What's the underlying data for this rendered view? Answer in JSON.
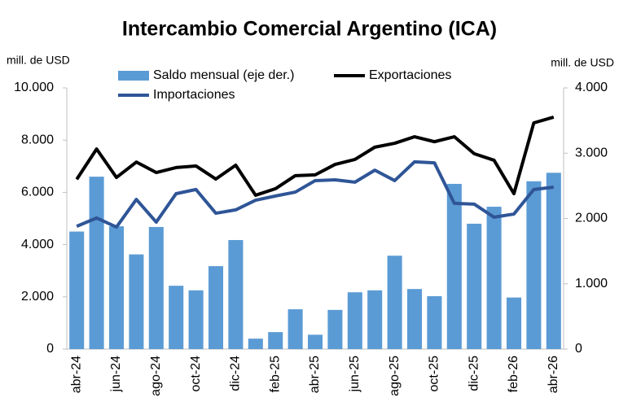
{
  "chart_data": {
    "type": "bar-line",
    "title": "Intercambio Comercial Argentino (ICA)",
    "y_label": "mill. de USD",
    "y2_label": "mill. de USD",
    "categories": [
      "abr-24",
      null,
      "jun-24",
      null,
      "ago-24",
      null,
      "oct-24",
      null,
      "dic-24",
      null,
      "feb-25",
      null,
      "abr-25",
      null,
      "jun-25",
      null,
      "ago-25",
      null,
      "oct-25",
      null,
      "dic-25",
      null,
      "feb-26",
      null,
      "abr-26"
    ],
    "ylim": [
      0,
      10000
    ],
    "yticks": [
      0,
      {
        "value": 2000,
        "label": "2.000"
      },
      {
        "value": 4000,
        "label": "4.000"
      },
      {
        "value": 6000,
        "label": "6.000"
      },
      {
        "value": 8000,
        "label": "8.000"
      },
      {
        "value": 10000,
        "label": "10.000"
      }
    ],
    "y2lim": [
      0,
      4000
    ],
    "y2ticks": [
      0,
      {
        "value": 1000,
        "label": "1.000"
      },
      {
        "value": 2000,
        "label": "2.000"
      },
      {
        "value": 3000,
        "label": "3.000"
      },
      {
        "value": 4000,
        "label": "4.000"
      }
    ],
    "series": [
      {
        "name": "Saldo mensual (eje der.)",
        "type": "bar",
        "axis": "y2",
        "color": "#5b9bd5",
        "values": [
          1800,
          2640,
          1880,
          1450,
          1870,
          970,
          900,
          1270,
          1670,
          160,
          260,
          610,
          220,
          600,
          870,
          900,
          1430,
          920,
          810,
          2530,
          1920,
          2180,
          790,
          2570,
          2700
        ]
      },
      {
        "name": "Exportaciones",
        "type": "line",
        "color": "#000000",
        "values": [
          6500,
          7660,
          6570,
          7160,
          6760,
          6950,
          7010,
          6510,
          7040,
          5890,
          6140,
          6640,
          6670,
          7070,
          7260,
          7730,
          7880,
          8130,
          7940,
          8130,
          7480,
          7230,
          5950,
          8660,
          8880
        ]
      },
      {
        "name": "Importaciones",
        "type": "line",
        "color": "#2f5597",
        "values": [
          4700,
          5020,
          4670,
          5730,
          4860,
          5950,
          6110,
          5200,
          5330,
          5700,
          5860,
          6010,
          6450,
          6480,
          6390,
          6850,
          6450,
          7170,
          7130,
          5580,
          5550,
          5050,
          5170,
          6110,
          6200
        ]
      }
    ]
  }
}
